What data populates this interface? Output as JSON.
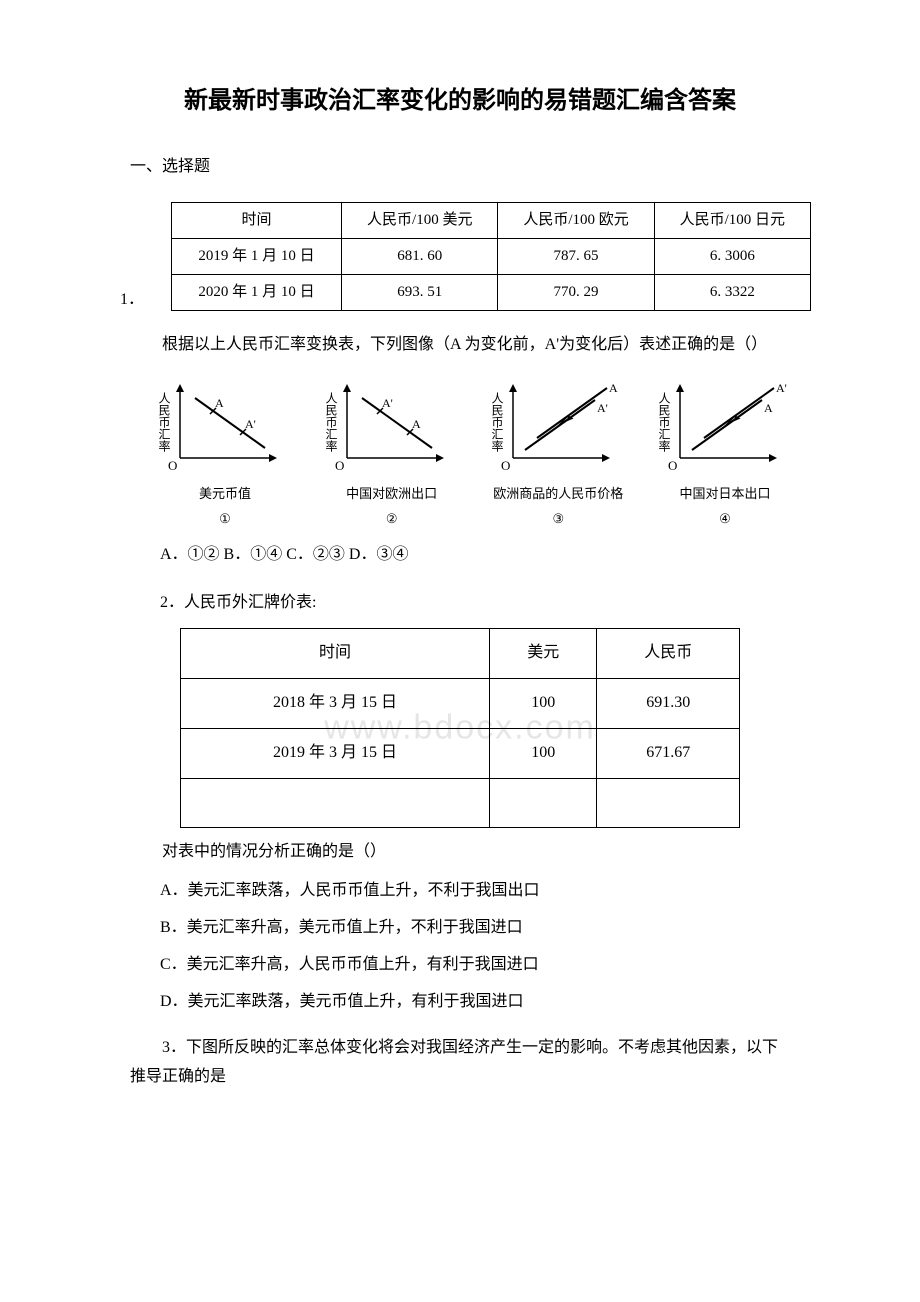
{
  "title": "新最新时事政治汇率变化的影响的易错题汇编含答案",
  "section_label": "一、选择题",
  "q1": {
    "num": "1．",
    "table": {
      "headers": [
        "时间",
        "人民币/100 美元",
        "人民币/100 欧元",
        "人民币/100 日元"
      ],
      "rows": [
        [
          "2019 年 1 月 10 日",
          "681. 60",
          "787. 65",
          "6. 3006"
        ],
        [
          "2020 年 1 月 10 日",
          "693. 51",
          "770. 29",
          "6. 3322"
        ]
      ]
    },
    "prompt": "根据以上人民币汇率变换表，下列图像（A 为变化前，A'为变化后）表述正确的是（）",
    "charts": [
      {
        "ylabel": "人民币汇率",
        "xlabel": "美元币值",
        "circled": "①",
        "type": "down",
        "a_first": true
      },
      {
        "ylabel": "人民币汇率",
        "xlabel": "中国对欧洲出口",
        "circled": "②",
        "type": "down",
        "a_first": false
      },
      {
        "ylabel": "人民币汇率",
        "xlabel": "欧洲商品的人民币价格",
        "circled": "③",
        "type": "up",
        "a_first": false
      },
      {
        "ylabel": "人民币汇率",
        "xlabel": "中国对日本出口",
        "circled": "④",
        "type": "up",
        "a_first": true
      }
    ],
    "options": "A．①② B．①④ C．②③ D．③④"
  },
  "q2": {
    "title": "2．人民币外汇牌价表:",
    "table": {
      "headers": [
        "时间",
        "美元",
        "人民币"
      ],
      "rows": [
        [
          "2018 年 3 月 15 日",
          "100",
          "691.30"
        ],
        [
          "2019 年 3 月 15 日",
          "100",
          "671.67"
        ],
        [
          "",
          "",
          ""
        ]
      ]
    },
    "watermark": "www.bdocx.com",
    "prompt": "对表中的情况分析正确的是（）",
    "opts": [
      "A．美元汇率跌落，人民币币值上升，不利于我国出口",
      "B．美元汇率升高，美元币值上升，不利于我国进口",
      "C．美元汇率升高，人民币币值上升，有利于我国进口",
      "D．美元汇率跌落，美元币值上升，有利于我国进口"
    ]
  },
  "q3": {
    "text": "3．下图所反映的汇率总体变化将会对我国经济产生一定的影响。不考虑其他因素，以下推导正确的是"
  },
  "chart_style": {
    "width": 150,
    "height": 110,
    "axis_color": "#000000",
    "line_color": "#000000",
    "font_size": 12
  }
}
